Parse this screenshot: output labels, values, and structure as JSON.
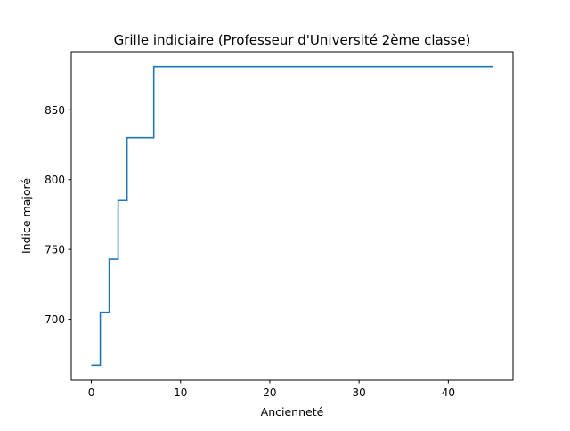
{
  "chart_data": {
    "type": "line",
    "drawstyle": "steps-post",
    "title": "Grille indiciaire (Professeur d'Université 2ème classe)",
    "xlabel": "Ancienneté",
    "ylabel": "Indice majoré",
    "xlim": [
      -2.25,
      47.25
    ],
    "ylim": [
      656.35,
      891.65
    ],
    "xticks": [
      0,
      10,
      20,
      30,
      40
    ],
    "yticks": [
      700,
      750,
      800,
      850
    ],
    "grid": false,
    "legend": "none",
    "series": [
      {
        "color": "#1f77b4",
        "x": [
          0,
          1,
          2,
          3,
          4,
          7,
          45
        ],
        "y": [
          667,
          705,
          743,
          785,
          830,
          881,
          881
        ]
      }
    ]
  }
}
